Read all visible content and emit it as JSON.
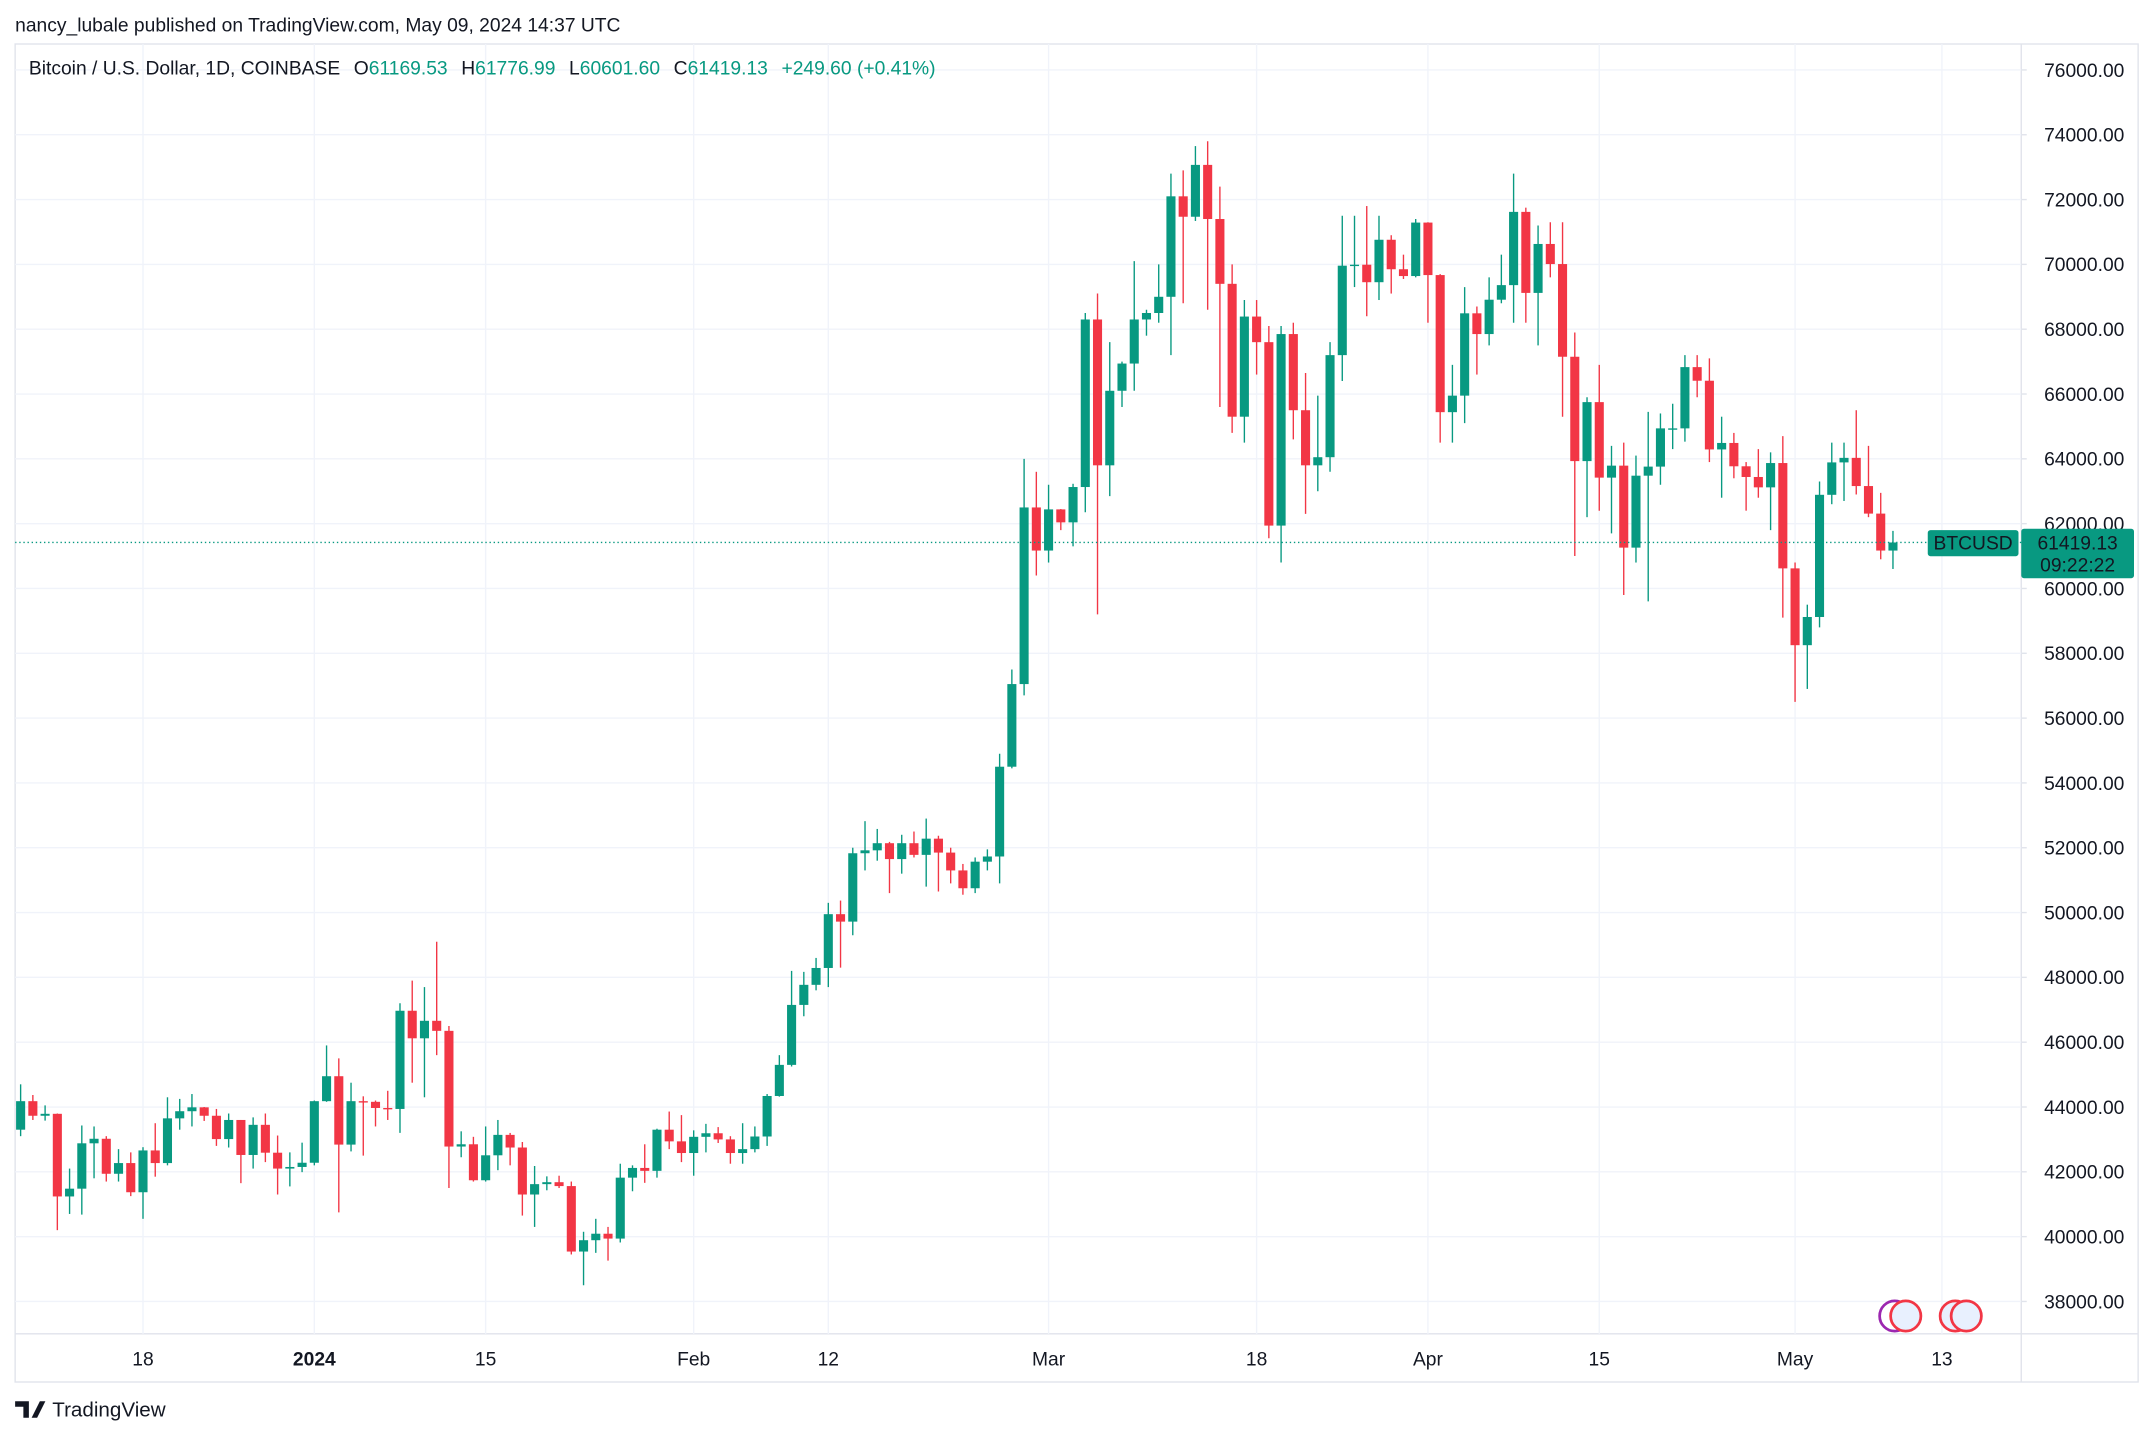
{
  "header": {
    "publisher": "nancy_lubale published on TradingView.com, May 09, 2024 14:37 UTC"
  },
  "legend": {
    "symbol": "Bitcoin / U.S. Dollar, 1D, COINBASE",
    "open_label": "O",
    "open": "61169.53",
    "high_label": "H",
    "high": "61776.99",
    "low_label": "L",
    "low": "60601.60",
    "close_label": "C",
    "close": "61419.13",
    "change": "+249.60 (+0.41%)"
  },
  "price_tag": {
    "symbol": "BTCUSD",
    "countdown": "09:22:22"
  },
  "footer": {
    "brand": "TradingView"
  },
  "chart_data": {
    "type": "candlestick",
    "up_color": "#089981",
    "down_color": "#f23645",
    "grid": true,
    "categories": [
      null,
      null,
      null,
      null,
      null,
      null,
      null,
      null,
      null,
      null,
      "18",
      null,
      null,
      null,
      null,
      null,
      null,
      null,
      null,
      null,
      null,
      null,
      null,
      null,
      "2024",
      null,
      null,
      null,
      null,
      null,
      null,
      null,
      null,
      null,
      null,
      null,
      null,
      null,
      "15",
      null,
      null,
      null,
      null,
      null,
      null,
      null,
      null,
      null,
      null,
      null,
      null,
      null,
      null,
      null,
      null,
      "Feb",
      null,
      null,
      null,
      null,
      null,
      null,
      null,
      null,
      null,
      null,
      "12",
      null,
      null,
      null,
      null,
      null,
      null,
      null,
      null,
      null,
      null,
      null,
      null,
      null,
      null,
      null,
      null,
      null,
      "Mar",
      null,
      null,
      null,
      null,
      null,
      null,
      null,
      null,
      null,
      null,
      null,
      null,
      null,
      null,
      null,
      null,
      "18",
      null,
      null,
      null,
      null,
      null,
      null,
      null,
      null,
      null,
      null,
      null,
      null,
      null,
      "Apr",
      null,
      null,
      null,
      null,
      null,
      null,
      null,
      null,
      null,
      null,
      null,
      null,
      null,
      "15",
      null,
      null,
      null,
      null,
      null,
      null,
      null,
      null,
      null,
      null,
      null,
      null,
      null,
      null,
      null,
      "May",
      null,
      null,
      null,
      null,
      null,
      null,
      null,
      null,
      null,
      null,
      null,
      "13"
    ],
    "open": [
      43300,
      44180,
      43730,
      43790,
      41240,
      41480,
      42880,
      43020,
      41940,
      42270,
      41370,
      42660,
      42270,
      43650,
      43870,
      43990,
      43730,
      43010,
      43600,
      42520,
      43450,
      42590,
      42100,
      42150,
      42280,
      44180,
      44950,
      42840,
      44180,
      44160,
      43970,
      43940,
      46970,
      46120,
      46660,
      46350,
      42780,
      42850,
      41740,
      42510,
      43140,
      42750,
      41300,
      41620,
      41680,
      41560,
      39540,
      39890,
      40090,
      39940,
      41820,
      42120,
      42030,
      43300,
      42940,
      42580,
      43080,
      43190,
      43000,
      42580,
      42700,
      43090,
      44340,
      45300,
      47150,
      47770,
      48290,
      49950,
      49720,
      51830,
      51920,
      52140,
      51650,
      52140,
      51780,
      52280,
      51850,
      51300,
      50750,
      51570,
      51730,
      54500,
      57050,
      62500,
      61170,
      62440,
      62040,
      63130,
      68300,
      63800,
      66100,
      66940,
      68300,
      68500,
      69000,
      72100,
      71470,
      73070,
      71400,
      69400,
      65300,
      68390,
      67600,
      61940,
      67850,
      65500,
      63800,
      64050,
      67200,
      69960,
      69990,
      69450,
      70760,
      69850,
      69640,
      71290,
      69670,
      65440,
      65950,
      68490,
      67850,
      68910,
      69360,
      71620,
      69120,
      70630,
      70010,
      67150,
      63930,
      65750,
      63420,
      63790,
      61260,
      63480,
      63760,
      64940,
      64940,
      66830,
      66410,
      64290,
      64490,
      63770,
      63440,
      63120,
      63870,
      60620,
      58250,
      59120,
      62890,
      63890,
      64030,
      63160,
      62310,
      61169.53,
      null,
      null,
      null,
      null
    ],
    "high": [
      44700,
      44370,
      44050,
      43800,
      42100,
      43430,
      43400,
      43100,
      42700,
      42600,
      42760,
      43500,
      44300,
      44250,
      44400,
      44000,
      43940,
      43800,
      43600,
      43680,
      43800,
      43120,
      42600,
      42900,
      44200,
      45900,
      45500,
      44750,
      44330,
      44200,
      44500,
      47200,
      47900,
      47700,
      49100,
      46500,
      43250,
      43080,
      43400,
      43600,
      43200,
      42920,
      42180,
      41860,
      41880,
      41700,
      40150,
      40550,
      40300,
      42250,
      42200,
      42850,
      43330,
      43860,
      43750,
      43280,
      43480,
      43380,
      43100,
      43500,
      43400,
      44400,
      45600,
      48200,
      48170,
      48600,
      50300,
      50370,
      52000,
      52820,
      52580,
      52180,
      52400,
      52500,
      52900,
      52370,
      52000,
      51500,
      51700,
      51950,
      54900,
      57500,
      64000,
      63600,
      63200,
      62450,
      63230,
      68500,
      69100,
      67600,
      67000,
      70100,
      68600,
      70000,
      72800,
      72900,
      73650,
      73800,
      72400,
      70000,
      68900,
      68900,
      68100,
      68100,
      68200,
      66650,
      65950,
      67600,
      71500,
      71500,
      71800,
      71500,
      70900,
      70300,
      71400,
      71300,
      69700,
      66900,
      69300,
      68700,
      69600,
      70300,
      72800,
      71750,
      71200,
      71300,
      71300,
      67900,
      65900,
      66900,
      64400,
      64500,
      64100,
      65450,
      65400,
      65700,
      67200,
      67200,
      67100,
      65300,
      64800,
      63900,
      64300,
      64200,
      64700,
      60800,
      59500,
      63300,
      64500,
      64500,
      65500,
      64400,
      62950,
      61776.99,
      null,
      null,
      null,
      null
    ],
    "low": [
      43100,
      43600,
      43580,
      40200,
      40700,
      40680,
      41800,
      41700,
      41700,
      41250,
      40550,
      41850,
      42200,
      43300,
      43400,
      43570,
      42800,
      42750,
      41650,
      42100,
      42300,
      41300,
      41550,
      41990,
      42200,
      44160,
      40750,
      42630,
      42500,
      43400,
      43600,
      43200,
      44750,
      44300,
      45600,
      41500,
      42450,
      41700,
      41700,
      42050,
      42200,
      40650,
      40300,
      41430,
      41500,
      39450,
      38500,
      39500,
      39260,
      39820,
      41400,
      41660,
      41820,
      42700,
      42300,
      41880,
      42600,
      42890,
      42250,
      42250,
      42600,
      42800,
      44320,
      45250,
      46800,
      47600,
      47700,
      48300,
      49300,
      51300,
      51600,
      50600,
      51200,
      51700,
      50800,
      50650,
      50900,
      50550,
      50600,
      51300,
      50900,
      54450,
      56700,
      60400,
      60800,
      61800,
      61300,
      62350,
      59200,
      62850,
      65600,
      66100,
      67800,
      68200,
      67200,
      68800,
      71340,
      68600,
      65600,
      64800,
      64500,
      66600,
      61550,
      60800,
      64600,
      62300,
      63000,
      63600,
      66400,
      69300,
      68400,
      68900,
      69100,
      69550,
      69600,
      68200,
      64500,
      64500,
      65100,
      66600,
      67500,
      68800,
      68200,
      68200,
      67500,
      69600,
      65300,
      61000,
      62200,
      62400,
      61700,
      59800,
      60800,
      59600,
      63200,
      64300,
      64530,
      65900,
      63900,
      62800,
      63400,
      62400,
      62800,
      61800,
      59100,
      56500,
      56900,
      58800,
      62600,
      62700,
      62900,
      62200,
      60900,
      60601.6,
      null,
      null,
      null,
      null
    ],
    "close": [
      44180,
      43730,
      43790,
      41240,
      41480,
      42880,
      43020,
      41940,
      42270,
      41370,
      42660,
      42270,
      43650,
      43870,
      43990,
      43730,
      43010,
      43600,
      42520,
      43450,
      42590,
      42100,
      42150,
      42280,
      44180,
      44950,
      42840,
      44180,
      44160,
      43970,
      43940,
      46970,
      46120,
      46660,
      46350,
      42780,
      42850,
      41740,
      42510,
      43140,
      42750,
      41300,
      41620,
      41680,
      41560,
      39540,
      39890,
      40090,
      39940,
      41820,
      42120,
      42030,
      43300,
      42940,
      42580,
      43080,
      43190,
      43000,
      42580,
      42700,
      43090,
      44340,
      45300,
      47150,
      47770,
      48290,
      49950,
      49720,
      51830,
      51920,
      52140,
      51650,
      52140,
      51780,
      52280,
      51850,
      51300,
      50750,
      51570,
      51730,
      54500,
      57050,
      62500,
      61170,
      62440,
      62040,
      63130,
      68300,
      63800,
      66100,
      66940,
      68300,
      68500,
      69000,
      72100,
      71470,
      73070,
      71400,
      69400,
      65300,
      68390,
      67600,
      61940,
      67850,
      65500,
      63800,
      64050,
      67200,
      69960,
      69990,
      69450,
      70760,
      69850,
      69640,
      71290,
      69670,
      65440,
      65950,
      68490,
      67850,
      68910,
      69360,
      71620,
      69120,
      70630,
      70010,
      67150,
      63930,
      65750,
      63420,
      63790,
      61260,
      63480,
      63760,
      64940,
      64940,
      66830,
      66410,
      64290,
      64490,
      63770,
      63440,
      63120,
      63870,
      60620,
      58250,
      59120,
      62890,
      63890,
      64030,
      63160,
      62310,
      61170,
      61419.13,
      null,
      null,
      null,
      null
    ],
    "ylim": [
      37000,
      76800
    ],
    "yticks": [
      {
        "value": 38000,
        "label": "38000.00"
      },
      {
        "value": 40000,
        "label": "40000.00"
      },
      {
        "value": 42000,
        "label": "42000.00"
      },
      {
        "value": 44000,
        "label": "44000.00"
      },
      {
        "value": 46000,
        "label": "46000.00"
      },
      {
        "value": 48000,
        "label": "48000.00"
      },
      {
        "value": 50000,
        "label": "50000.00"
      },
      {
        "value": 52000,
        "label": "52000.00"
      },
      {
        "value": 54000,
        "label": "54000.00"
      },
      {
        "value": 56000,
        "label": "56000.00"
      },
      {
        "value": 58000,
        "label": "58000.00"
      },
      {
        "value": 60000,
        "label": "60000.00"
      },
      {
        "value": 62000,
        "label": "62000.00"
      },
      {
        "value": 64000,
        "label": "64000.00"
      },
      {
        "value": 66000,
        "label": "66000.00"
      },
      {
        "value": 68000,
        "label": "68000.00"
      },
      {
        "value": 70000,
        "label": "70000.00"
      },
      {
        "value": 72000,
        "label": "72000.00"
      },
      {
        "value": 74000,
        "label": "74000.00"
      },
      {
        "value": 76000,
        "label": "76000.00"
      }
    ]
  }
}
